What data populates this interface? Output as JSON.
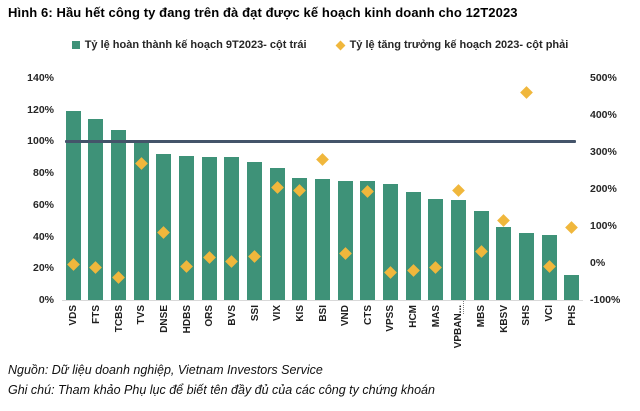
{
  "title": "Hình 6: Hầu hết công ty đang trên đà đạt được kế hoạch kinh doanh cho 12T2023",
  "legend": {
    "series1": "Tỷ lệ hoàn thành kế hoạch 9T2023- cột trái",
    "series2": "Tỷ lệ tăng trưởng kế hoạch 2023- cột phải"
  },
  "footer": {
    "source": "Nguồn: Dữ liệu doanh nghiệp, Vietnam Investors Service",
    "note": "Ghi chú: Tham khảo Phụ lục để biết tên đầy đủ của các công ty chứng khoán"
  },
  "colors": {
    "bar": "#3E9278",
    "diamond": "#F0B73C",
    "target_line": "#44546A",
    "axis_text": "#262626",
    "baseline": "#D9D9D9"
  },
  "chart_data": {
    "type": "bar",
    "subtype": "dual-axis bar + diamond scatter",
    "categories": [
      "VDS",
      "FTS",
      "TCBS",
      "TVS",
      "DNSE",
      "HDBS",
      "ORS",
      "BVS",
      "SSI",
      "VIX",
      "KIS",
      "BSI",
      "VND",
      "CTS",
      "VPSS",
      "HCM",
      "MAS",
      "VPBAN...",
      "MBS",
      "KBSV",
      "SHS",
      "VCI",
      "PHS"
    ],
    "series": [
      {
        "name": "Tỷ lệ hoàn thành kế hoạch 9T2023- cột trái",
        "type": "bar",
        "axis": "left",
        "unit": "%",
        "values": [
          119,
          114,
          107,
          100,
          92,
          91,
          90,
          90,
          87,
          83,
          77,
          76,
          75,
          75,
          73,
          68,
          64,
          63,
          56,
          46,
          42,
          41,
          16
        ]
      },
      {
        "name": "Tỷ lệ tăng trưởng kế hoạch 2023- cột phải",
        "type": "scatter-diamond",
        "axis": "right",
        "unit": "%",
        "values": [
          -5,
          -11,
          -40,
          270,
          82,
          -10,
          16,
          3,
          17,
          205,
          195,
          280,
          26,
          193,
          -27,
          -21,
          -13,
          195,
          32,
          115,
          460,
          -10,
          95
        ]
      }
    ],
    "left_axis": {
      "tick_labels": [
        "0%",
        "20%",
        "40%",
        "60%",
        "80%",
        "100%",
        "120%",
        "140%"
      ]
    },
    "right_axis": {
      "tick_labels": [
        "-100%",
        "0%",
        "100%",
        "200%",
        "300%",
        "400%",
        "500%"
      ]
    },
    "reference_line": {
      "value": 100,
      "axis": "left"
    },
    "grid": false,
    "legend_position": "top"
  }
}
